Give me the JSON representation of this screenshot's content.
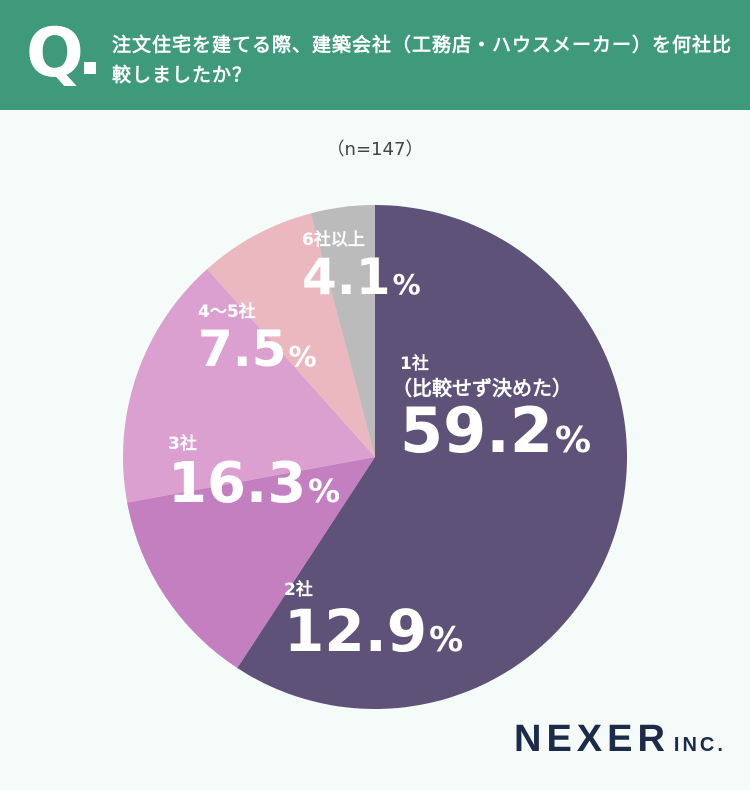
{
  "header": {
    "q_mark": "Q",
    "question": "注文住宅を建てる際、建築会社（工務店・ハウスメーカー）を何社比較しましたか？"
  },
  "sample_size": "（n=147）",
  "chart_data": {
    "type": "pie",
    "title": "注文住宅を建てる際、建築会社（工務店・ハウスメーカー）を何社比較しましたか？",
    "subtitle": "（n=147）",
    "start_angle": "12 o'clock",
    "direction": "clockwise",
    "slices": [
      {
        "label": "1社（比較せず決めた）",
        "name_line1": "1社",
        "name_line2": "（比較せず決めた）",
        "value": 59.2,
        "color": "#5e5278"
      },
      {
        "label": "2社",
        "name_line1": "2社",
        "name_line2": "",
        "value": 12.9,
        "color": "#c47fc0"
      },
      {
        "label": "3社",
        "name_line1": "3社",
        "name_line2": "",
        "value": 16.3,
        "color": "#dca0d0"
      },
      {
        "label": "4〜5社",
        "name_line1": "4〜5社",
        "name_line2": "",
        "value": 7.5,
        "color": "#ecb8bf"
      },
      {
        "label": "6社以上",
        "name_line1": "6社以上",
        "name_line2": "",
        "value": 4.1,
        "color": "#bbbbbb"
      }
    ],
    "unit": "%"
  },
  "logo": {
    "brand": "NEXER",
    "suffix": "INC."
  }
}
